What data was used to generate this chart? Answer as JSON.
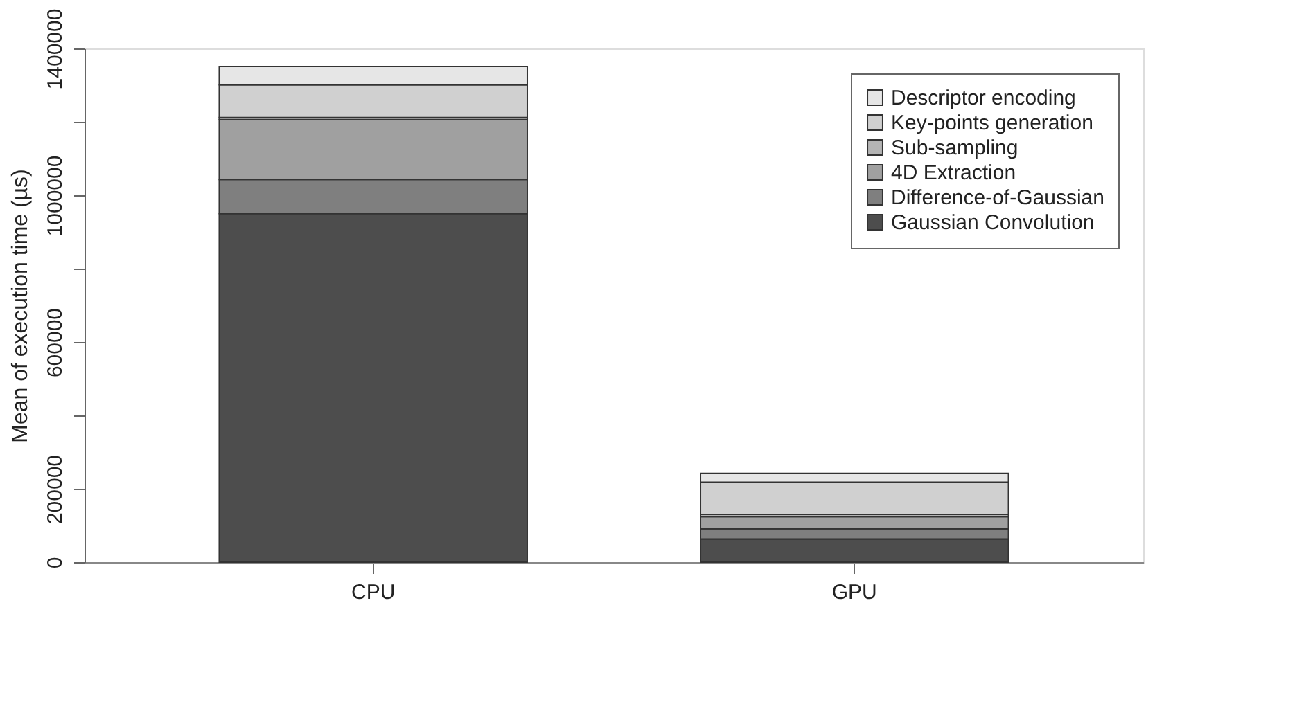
{
  "chart_data": {
    "type": "bar",
    "stacked": true,
    "categories": [
      "CPU",
      "GPU"
    ],
    "ylabel": "Mean of execution time (µs)",
    "ylim": [
      0,
      1400000
    ],
    "yticks": [
      0,
      200000,
      {
        "value": 400000,
        "label": null
      },
      600000,
      {
        "value": 800000,
        "label": null
      },
      1000000,
      {
        "value": 1200000,
        "label": null
      },
      1400000
    ],
    "grid": false,
    "legend": "top right",
    "series": [
      {
        "name": "Gaussian Convolution",
        "color": "#4d4d4d",
        "values": [
          950000,
          63000
        ]
      },
      {
        "name": "Difference-of-Gaussian",
        "color": "#7f7f7f",
        "values": [
          93000,
          28000
        ]
      },
      {
        "name": "4D Extraction",
        "color": "#a0a0a0",
        "values": [
          163000,
          33000
        ]
      },
      {
        "name": "Sub-sampling",
        "color": "#b4b4b4",
        "values": [
          6000,
          6000
        ]
      },
      {
        "name": "Key-points generation",
        "color": "#d0d0d0",
        "values": [
          89000,
          88000
        ]
      },
      {
        "name": "Descriptor encoding",
        "color": "#e6e6e6",
        "values": [
          50000,
          24000
        ]
      }
    ]
  }
}
